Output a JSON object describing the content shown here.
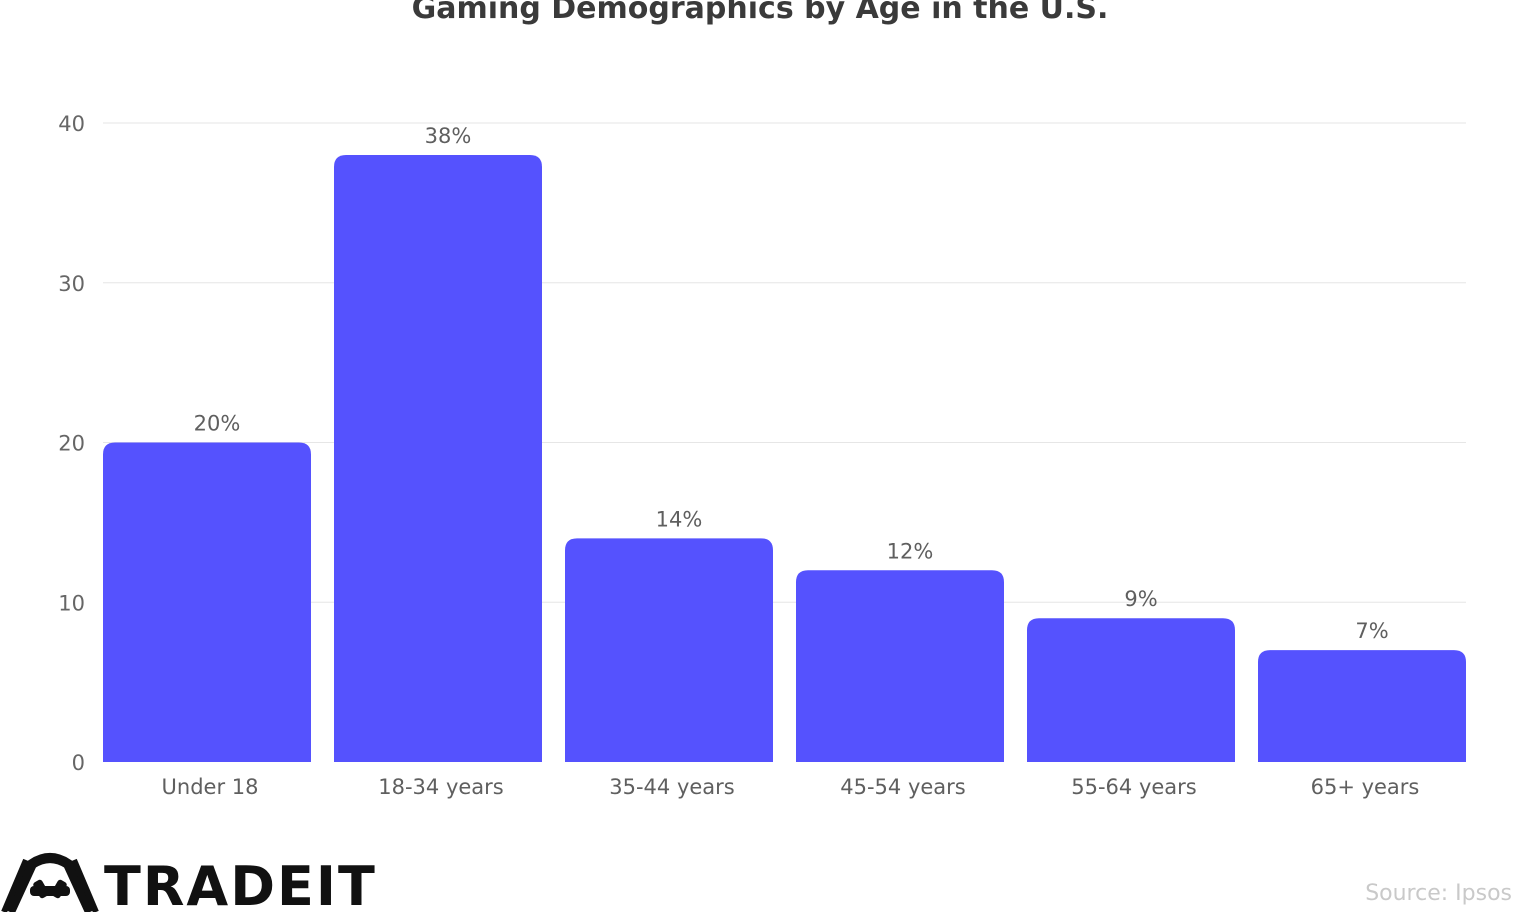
{
  "chart_data": {
    "type": "bar",
    "title": "Gaming Demographics by Age in the U.S.",
    "categories": [
      "Under 18",
      "18-34 years",
      "35-44 years",
      "45-54 years",
      "55-64 years",
      "65+ years"
    ],
    "values": [
      20,
      38,
      14,
      12,
      9,
      7
    ],
    "value_labels": [
      "20%",
      "38%",
      "14%",
      "12%",
      "9%",
      "7%"
    ],
    "yticks": [
      "0",
      "10",
      "20",
      "30",
      "40"
    ],
    "ylim": [
      0,
      40
    ],
    "grid": true,
    "bar_color": "#5552fe"
  },
  "footer": {
    "source": "Source: Ipsos",
    "logo_text": "TRADEIT"
  }
}
